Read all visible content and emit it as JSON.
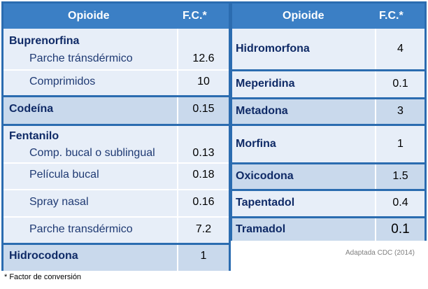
{
  "left_table": {
    "header": {
      "opioid": "Opioide",
      "factor": "F.C.*"
    },
    "buprenorfina": {
      "name": "Buprenorfina",
      "items": [
        {
          "label": "Parche tránsdérmico",
          "value": "12.6"
        },
        {
          "label": "Comprimidos",
          "value": "10"
        }
      ]
    },
    "codeina": {
      "name": "Codeína",
      "value": "0.15"
    },
    "fentanilo": {
      "name": "Fentanilo",
      "items": [
        {
          "label": "Comp. bucal o sublingual",
          "value": "0.13"
        },
        {
          "label": "Película bucal",
          "value": "0.18"
        },
        {
          "label": "Spray nasal",
          "value": "0.16"
        },
        {
          "label": "Parche transdérmico",
          "value": "7.2"
        }
      ]
    },
    "hidrocodona": {
      "name": "Hidrocodona",
      "value": "1"
    }
  },
  "right_table": {
    "header": {
      "opioid": "Opioide",
      "factor": "F.C.*"
    },
    "rows": [
      {
        "name": "Hidromorfona",
        "value": "4"
      },
      {
        "name": "Meperidina",
        "value": "0.1"
      },
      {
        "name": "Metadona",
        "value": "3"
      },
      {
        "name": "Morfina",
        "value": "1"
      },
      {
        "name": "Oxicodona",
        "value": "1.5"
      },
      {
        "name": "Tapentadol",
        "value": "0.4"
      },
      {
        "name": "Tramadol",
        "value": "0.1"
      }
    ]
  },
  "source": "Adaptada CDC (2014)",
  "footnote": "* Factor de conversión"
}
